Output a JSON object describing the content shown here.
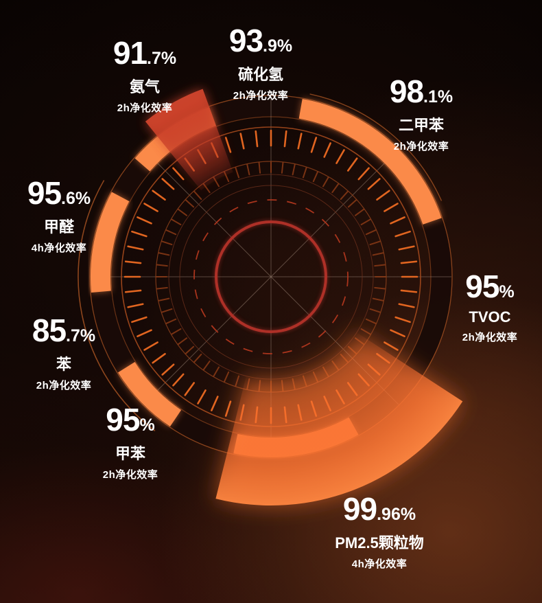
{
  "colors": {
    "text": "#ffffff",
    "ring_bright": "#fb8a49",
    "ring_dark": "#190b07",
    "ring_edge": "#e06f2d",
    "tick": "#ec6a22",
    "tick_dim": "#8a3a16",
    "wedge_orange": "#ff8a3c",
    "wedge_red": "#cf4630",
    "center_red": "#b23129",
    "dash_red": "#b8391f",
    "circle_faint": "#6b2f1c",
    "circle_mid": "#a54a1d",
    "spoke": "#9a8374"
  },
  "pollutants": [
    {
      "id": "ammonia",
      "name": "氨气",
      "value": "91.7%",
      "value_main": "91",
      "value_suffix": ".7%",
      "duration_label": "2h净化效率"
    },
    {
      "id": "hydrogen-sulfide",
      "name": "硫化氢",
      "value": "93.9%",
      "value_main": "93",
      "value_suffix": ".9%",
      "duration_label": "2h净化效率"
    },
    {
      "id": "xylene",
      "name": "二甲苯",
      "value": "98.1%",
      "value_main": "98",
      "value_suffix": ".1%",
      "duration_label": "2h净化效率"
    },
    {
      "id": "formaldehyde",
      "name": "甲醛",
      "value": "95.6%",
      "value_main": "95",
      "value_suffix": ".6%",
      "duration_label": "4h净化效率"
    },
    {
      "id": "tvoc",
      "name": "TVOC",
      "value": "95%",
      "value_main": "95",
      "value_suffix": "%",
      "duration_label": "2h净化效率"
    },
    {
      "id": "benzene",
      "name": "苯",
      "value": "85.7%",
      "value_main": "85",
      "value_suffix": ".7%",
      "duration_label": "2h净化效率"
    },
    {
      "id": "toluene",
      "name": "甲苯",
      "value": "95%",
      "value_main": "95",
      "value_suffix": "%",
      "duration_label": "2h净化效率"
    },
    {
      "id": "pm25",
      "name": "PM2.5颗粒物",
      "value": "99.96%",
      "value_main": "99",
      "value_suffix": ".96%",
      "duration_label": "4h净化效率"
    }
  ],
  "chart_data": {
    "type": "radial-gauge",
    "categories": [
      "氨气",
      "硫化氢",
      "二甲苯",
      "TVOC",
      "PM2.5颗粒物",
      "甲苯",
      "苯",
      "甲醛"
    ],
    "values": [
      91.7,
      93.9,
      98.1,
      95,
      99.96,
      95,
      85.7,
      95.6
    ],
    "unit": "%",
    "durations": [
      "2h",
      "2h",
      "2h",
      "2h",
      "4h",
      "2h",
      "2h",
      "4h"
    ],
    "series_label": "净化效率",
    "legend": "none",
    "grid": "concentric circles with radial spokes and tick ring",
    "highlight_wedges": [
      {
        "category": "PM2.5颗粒物",
        "color": "#fa7c34",
        "angle_deg": [
          256,
          327
        ],
        "radius_px": [
          150,
          333
        ]
      },
      {
        "category": "氨气",
        "color": "#c64531",
        "angle_deg": [
          110,
          129
        ],
        "radius_px": [
          162,
          291
        ]
      }
    ],
    "ring_segments_deg": [
      [
        19,
        80
      ],
      [
        110,
        139
      ],
      [
        152,
        185
      ],
      [
        212,
        236
      ],
      [
        258,
        299
      ]
    ]
  }
}
